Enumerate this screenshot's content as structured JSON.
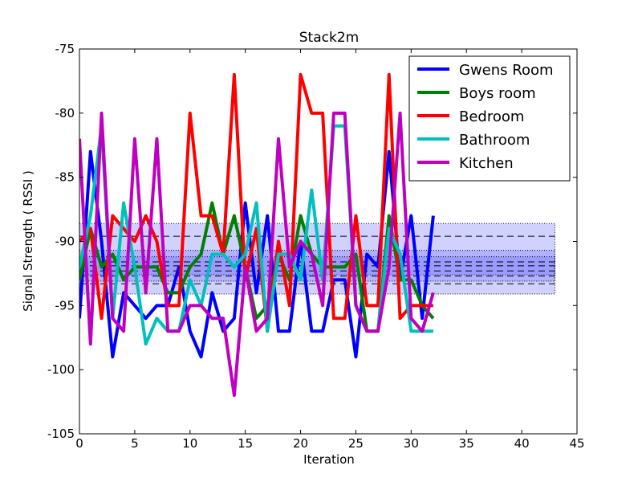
{
  "chart_data": {
    "type": "line",
    "title": "Stack2m",
    "xlabel": "Iteration",
    "ylabel": "Signal Strength  ( RSSI )",
    "x": [
      0,
      1,
      2,
      3,
      4,
      5,
      6,
      7,
      8,
      9,
      10,
      11,
      12,
      13,
      14,
      15,
      16,
      17,
      18,
      19,
      20,
      21,
      22,
      23,
      24,
      25,
      26,
      27,
      28,
      29,
      30,
      31,
      32
    ],
    "series": [
      {
        "name": "Gwens Room",
        "color": "#0000ff",
        "values": [
          -96,
          -83,
          -90,
          -99,
          -94,
          -95,
          -96,
          -95,
          -95,
          -92,
          -97,
          -99,
          -94,
          -97,
          -96,
          -87,
          -94,
          -88,
          -97,
          -97,
          -90,
          -97,
          -97,
          -93,
          -93,
          -99,
          -91,
          -92,
          -83,
          -93,
          -88,
          -96,
          -88
        ]
      },
      {
        "name": "Boys room",
        "color": "#008000",
        "values": [
          -93,
          -89,
          -92,
          -91,
          -93,
          -92,
          -92,
          -92,
          -94,
          -94,
          -92,
          -91,
          -87,
          -91,
          -88,
          -92,
          -96,
          -95,
          -91,
          -93,
          -88,
          -91,
          -92,
          -92,
          -92,
          -91,
          -97,
          -97,
          -88,
          -93,
          -93,
          -95,
          -96
        ]
      },
      {
        "name": "Bedroom",
        "color": "#ff0000",
        "values": [
          -90,
          -89,
          -96,
          -88,
          -89,
          -90,
          -88,
          -90,
          -95,
          -95,
          -80,
          -88,
          -88,
          -91,
          -77,
          -93,
          -89,
          -97,
          -90,
          -95,
          -77,
          -80,
          -80,
          -96,
          -96,
          -88,
          -95,
          -95,
          -77,
          -96,
          -95,
          -95,
          -95
        ]
      },
      {
        "name": "Bathroom",
        "color": "#00bfbf",
        "values": [
          -92,
          -88,
          -81,
          -96,
          -87,
          -92,
          -98,
          -96,
          -97,
          -97,
          -93,
          -95,
          -91,
          -91,
          -92,
          -91,
          -87,
          -97,
          -91,
          -91,
          -93,
          -86,
          -93,
          -81,
          -81,
          -95,
          -97,
          -97,
          -89,
          -91,
          -97,
          -97,
          -97
        ]
      },
      {
        "name": "Kitchen",
        "color": "#bf00bf",
        "values": [
          -82,
          -98,
          -80,
          -96,
          -97,
          -82,
          -94,
          -82,
          -97,
          -97,
          -95,
          -95,
          -96,
          -96,
          -102,
          -92,
          -97,
          -96,
          -82,
          -92,
          -90,
          -91,
          -95,
          -80,
          -80,
          -95,
          -97,
          -97,
          -92,
          -80,
          -96,
          -97,
          -94
        ]
      }
    ],
    "bands": [
      [
        -94.1,
        -88.6
      ],
      [
        -92.6,
        -90.7
      ],
      [
        -93.1,
        -91.2
      ]
    ],
    "band_x": [
      0,
      43
    ],
    "band_color": "#6666ff",
    "dashed_lines": [
      -89.6,
      -91.6,
      -91.9,
      -92.3,
      -92.7,
      -93.3
    ],
    "xlim": [
      0,
      45
    ],
    "xticks": [
      0,
      5,
      10,
      15,
      20,
      25,
      30,
      35,
      40,
      45
    ],
    "ylim": [
      -105,
      -75
    ],
    "yticks": [
      -105,
      -100,
      -95,
      -90,
      -85,
      -80,
      -75
    ],
    "legend": "upper right"
  }
}
